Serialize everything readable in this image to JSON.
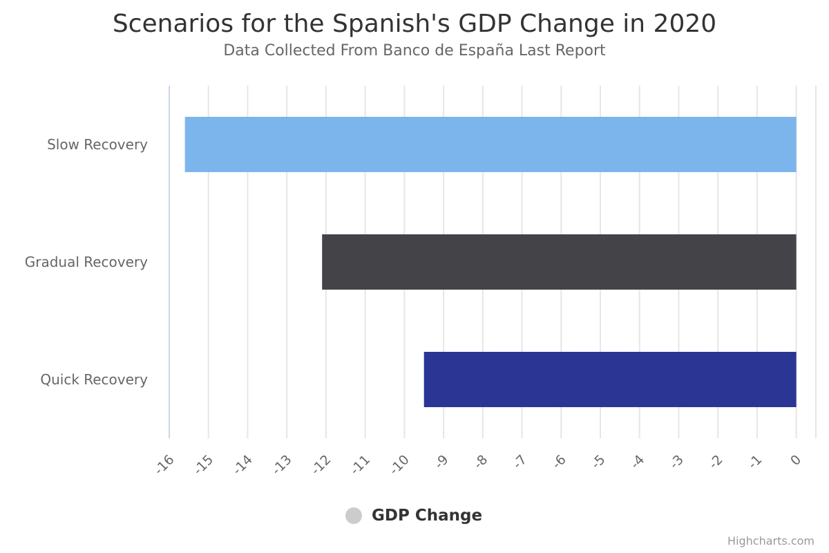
{
  "chart_data": {
    "type": "bar",
    "orientation": "horizontal",
    "title": "Scenarios for the Spanish's GDP Change in 2020",
    "subtitle": "Data Collected From Banco de España Last Report",
    "categories": [
      "Slow Recovery",
      "Gradual Recovery",
      "Quick Recovery"
    ],
    "series": [
      {
        "name": "GDP Change",
        "values": [
          -15.6,
          -12.1,
          -9.5
        ]
      }
    ],
    "point_colors": [
      "#7cb5ec",
      "#434348",
      "#2b3593"
    ],
    "xlim": [
      -16,
      0.5
    ],
    "ticks": [
      -16,
      -15,
      -14,
      -13,
      -12,
      -11,
      -10,
      -9,
      -8,
      -7,
      -6,
      -5,
      -4,
      -3,
      -2,
      -1,
      0
    ],
    "tick_labels": [
      "-16",
      "-15",
      "-14",
      "-13",
      "-12",
      "-11",
      "-10",
      "-9",
      "-8",
      "-7",
      "-6",
      "-5",
      "-4",
      "-3",
      "-2",
      "-1",
      "0"
    ],
    "grid": true,
    "legend": {
      "label": "GDP Change",
      "marker_color": "#cccccc",
      "position": "bottom-center"
    },
    "credits": "Highcharts.com"
  }
}
